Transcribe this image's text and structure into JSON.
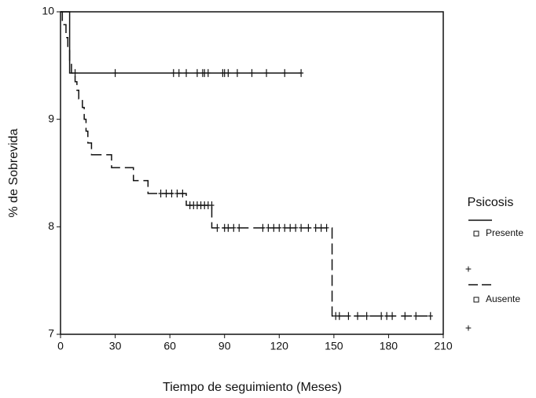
{
  "chart_data": {
    "type": "step",
    "xlabel": "Tiempo de seguimiento (Meses)",
    "ylabel": "% de Sobrevida",
    "legend_title": "Psicosis",
    "xlim": [
      0,
      210
    ],
    "ylim": [
      7,
      10
    ],
    "xticks": [
      0,
      30,
      60,
      90,
      120,
      150,
      180,
      210
    ],
    "yticks": [
      7,
      8,
      9,
      10
    ],
    "series": [
      {
        "name": "Presente",
        "style": "solid",
        "color": "#111111",
        "x": [
          0,
          5
        ],
        "values": [
          10,
          9.43
        ],
        "censor_x": [
          8,
          30,
          62,
          65,
          69,
          75,
          78,
          79,
          81,
          89,
          90,
          92,
          97,
          105,
          113,
          123,
          132
        ],
        "censor_values": [
          9.43,
          9.43,
          9.43,
          9.43,
          9.43,
          9.43,
          9.43,
          9.43,
          9.43,
          9.43,
          9.43,
          9.43,
          9.43,
          9.43,
          9.43,
          9.43,
          9.43
        ]
      },
      {
        "name": "Ausente",
        "style": "dashed",
        "color": "#111111",
        "x": [
          0,
          1,
          3,
          4,
          5,
          6,
          8,
          9,
          10,
          12,
          13,
          14,
          15,
          17,
          28,
          40,
          48,
          69,
          83,
          149
        ],
        "values": [
          10,
          9.88,
          9.76,
          9.64,
          9.53,
          9.43,
          9.35,
          9.27,
          9.19,
          9.11,
          9.0,
          8.89,
          8.78,
          8.67,
          8.55,
          8.43,
          8.31,
          8.2,
          7.99,
          7.17
        ],
        "censor_x": [
          55,
          58,
          61,
          64,
          67,
          71,
          73,
          75,
          77,
          79,
          81,
          83,
          86,
          90,
          92,
          95,
          98,
          111,
          114,
          117,
          120,
          123,
          126,
          129,
          132,
          136,
          140,
          143,
          146,
          151,
          153,
          158,
          163,
          168,
          176,
          179,
          182,
          189,
          195,
          203
        ],
        "censor_values": [
          8.31,
          8.31,
          8.31,
          8.31,
          8.31,
          8.2,
          8.2,
          8.2,
          8.2,
          8.2,
          8.2,
          8.2,
          7.99,
          7.99,
          7.99,
          7.99,
          7.99,
          7.99,
          7.99,
          7.99,
          7.99,
          7.99,
          7.99,
          7.99,
          7.99,
          7.99,
          7.99,
          7.99,
          7.99,
          7.17,
          7.17,
          7.17,
          7.17,
          7.17,
          7.17,
          7.17,
          7.17,
          7.17,
          7.17,
          7.17
        ]
      }
    ]
  }
}
